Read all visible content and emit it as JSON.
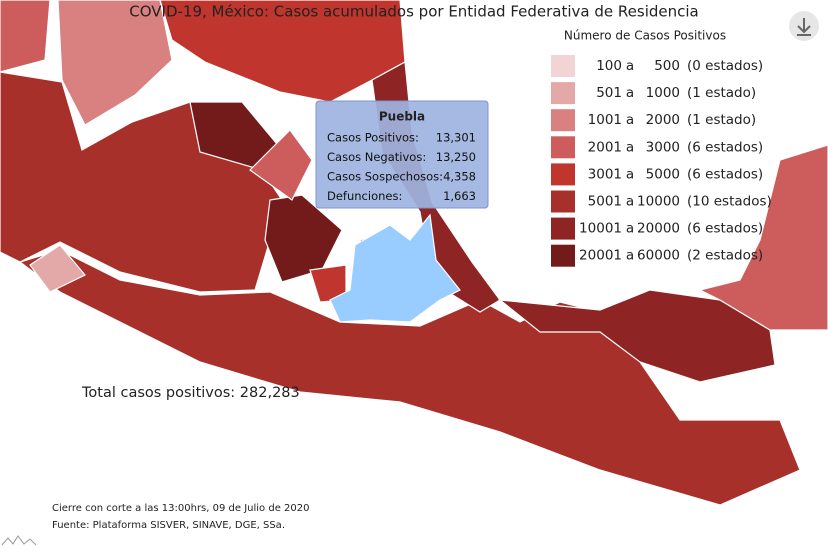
{
  "title": "COVID-19, México: Casos acumulados por Entidad Federativa de Residencia",
  "legend": {
    "title": "Número de Casos Positivos",
    "items": [
      {
        "low": "100",
        "sep": "a",
        "high": "500",
        "count": "(0 estados)",
        "color": "#f3d4d4"
      },
      {
        "low": "501",
        "sep": "a",
        "high": "1000",
        "count": "(1 estado)",
        "color": "#e3a9a9"
      },
      {
        "low": "1001",
        "sep": "a",
        "high": "2000",
        "count": "(1 estado)",
        "color": "#d98080"
      },
      {
        "low": "2001",
        "sep": "a",
        "high": "3000",
        "count": "(6 estados)",
        "color": "#cd5c5c"
      },
      {
        "low": "3001",
        "sep": "a",
        "high": "5000",
        "count": "(6 estados)",
        "color": "#c0352d"
      },
      {
        "low": "5001",
        "sep": "a",
        "high": "10000",
        "count": "(10 estados)",
        "color": "#a8302b"
      },
      {
        "low": "10001",
        "sep": "a",
        "high": "20000",
        "count": "(6 estados)",
        "color": "#8e2424"
      },
      {
        "low": "20001",
        "sep": "a",
        "high": "60000",
        "count": "(2 estados)",
        "color": "#731a1a"
      }
    ]
  },
  "tooltip": {
    "state": "Puebla",
    "rows": [
      {
        "label": "Casos Positivos:",
        "value": "13,301"
      },
      {
        "label": "Casos Negativos:",
        "value": "13,250"
      },
      {
        "label": "Casos Sospechosos:",
        "value": "4,358"
      },
      {
        "label": "Defunciones:",
        "value": "1,663"
      }
    ]
  },
  "total": "Total casos positivos: 282,283",
  "notes": [
    "Cierre con corte a las 13:00hrs, 09 de Julio de 2020",
    "Fuente: Plataforma SISVER, SINAVE, DGE, SSa."
  ]
}
